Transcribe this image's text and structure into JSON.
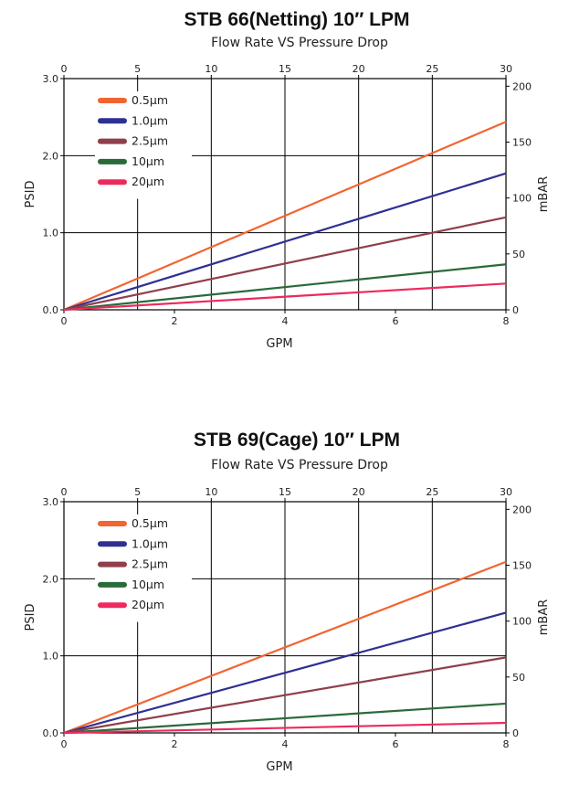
{
  "chart_data": [
    {
      "type": "line",
      "title": "STB 66(Netting)  10″   LPM",
      "subtitle": "Flow Rate VS Pressure Drop",
      "xlabel": "GPM",
      "ylabel": "PSID",
      "y2label": "mBAR",
      "xlim": [
        0,
        8
      ],
      "ylim": [
        0,
        3.0
      ],
      "x2lim": [
        0,
        30
      ],
      "y2lim": [
        0,
        206.8
      ],
      "x_ticks": [
        "0",
        "2",
        "4",
        "6",
        "8"
      ],
      "x2_ticks": [
        "0",
        "5",
        "10",
        "15",
        "20",
        "25",
        "30"
      ],
      "y_ticks": [
        "0.0",
        "1.0",
        "2.0",
        "3.0"
      ],
      "y2_ticks": [
        "0",
        "50",
        "100",
        "150",
        "200"
      ],
      "series": [
        {
          "name": "0.5μm",
          "color": "#F26531",
          "x": [
            0,
            8
          ],
          "y": [
            0,
            2.44
          ]
        },
        {
          "name": "1.0μm",
          "color": "#2E3192",
          "x": [
            0,
            8
          ],
          "y": [
            0,
            1.77
          ]
        },
        {
          "name": "2.5μm",
          "color": "#8F3F4C",
          "x": [
            0,
            8
          ],
          "y": [
            0,
            1.2
          ]
        },
        {
          "name": "10μm",
          "color": "#2A6A3A",
          "x": [
            0,
            8
          ],
          "y": [
            0,
            0.59
          ]
        },
        {
          "name": "20μm",
          "color": "#EC2A5E",
          "x": [
            0,
            8
          ],
          "y": [
            0,
            0.34
          ]
        }
      ]
    },
    {
      "type": "line",
      "title": "STB 69(Cage)  10″   LPM",
      "subtitle": "Flow Rate VS Pressure Drop",
      "xlabel": "GPM",
      "ylabel": "PSID",
      "y2label": "mBAR",
      "xlim": [
        0,
        8
      ],
      "ylim": [
        0,
        3.0
      ],
      "x2lim": [
        0,
        30
      ],
      "y2lim": [
        0,
        206.8
      ],
      "x_ticks": [
        "0",
        "2",
        "4",
        "6",
        "8"
      ],
      "x2_ticks": [
        "0",
        "5",
        "10",
        "15",
        "20",
        "25",
        "30"
      ],
      "y_ticks": [
        "0.0",
        "1.0",
        "2.0",
        "3.0"
      ],
      "y2_ticks": [
        "0",
        "50",
        "100",
        "150",
        "200"
      ],
      "series": [
        {
          "name": "0.5μm",
          "color": "#F26531",
          "x": [
            0,
            8
          ],
          "y": [
            0,
            2.22
          ]
        },
        {
          "name": "1.0μm",
          "color": "#2E3192",
          "x": [
            0,
            8
          ],
          "y": [
            0,
            1.56
          ]
        },
        {
          "name": "2.5μm",
          "color": "#8F3F4C",
          "x": [
            0,
            8
          ],
          "y": [
            0,
            0.98
          ]
        },
        {
          "name": "10μm",
          "color": "#2A6A3A",
          "x": [
            0,
            8
          ],
          "y": [
            0,
            0.38
          ]
        },
        {
          "name": "20μm",
          "color": "#EC2A5E",
          "x": [
            0,
            8
          ],
          "y": [
            0,
            0.13
          ]
        }
      ]
    }
  ]
}
